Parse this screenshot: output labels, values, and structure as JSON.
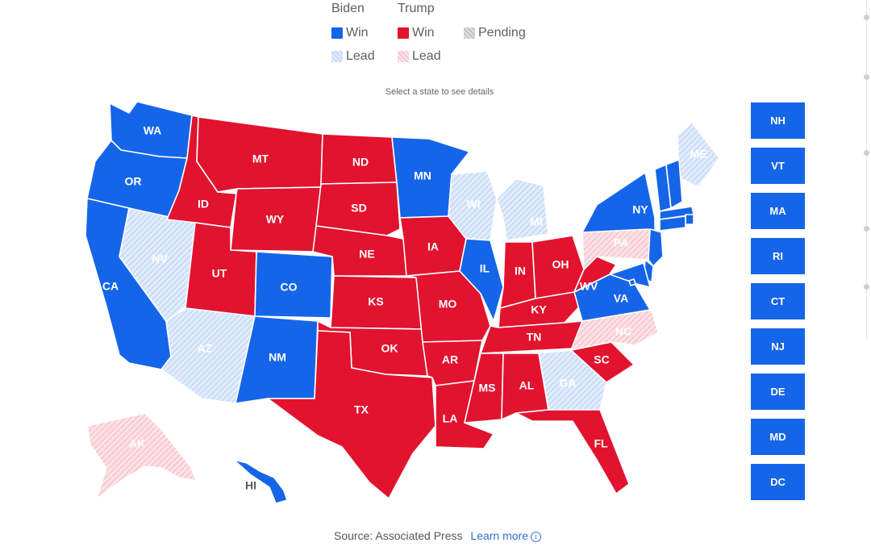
{
  "legend": {
    "biden_header": "Biden",
    "trump_header": "Trump",
    "win": "Win",
    "lead": "Lead",
    "pending": "Pending"
  },
  "hint": "Select a state to see details",
  "colors": {
    "biden_win": "#1565e8",
    "trump_win": "#e1132e",
    "biden_lead": "#d7e6fb",
    "trump_lead": "#fadadf",
    "pending": "#d3d5d8"
  },
  "states": [
    {
      "code": "WA",
      "status": "biden_win"
    },
    {
      "code": "OR",
      "status": "biden_win"
    },
    {
      "code": "CA",
      "status": "biden_win"
    },
    {
      "code": "NV",
      "status": "biden_lead"
    },
    {
      "code": "ID",
      "status": "trump_win"
    },
    {
      "code": "MT",
      "status": "trump_win"
    },
    {
      "code": "WY",
      "status": "trump_win"
    },
    {
      "code": "UT",
      "status": "trump_win"
    },
    {
      "code": "AZ",
      "status": "biden_lead"
    },
    {
      "code": "CO",
      "status": "biden_win"
    },
    {
      "code": "NM",
      "status": "biden_win"
    },
    {
      "code": "ND",
      "status": "trump_win"
    },
    {
      "code": "SD",
      "status": "trump_win"
    },
    {
      "code": "NE",
      "status": "trump_win"
    },
    {
      "code": "KS",
      "status": "trump_win"
    },
    {
      "code": "OK",
      "status": "trump_win"
    },
    {
      "code": "TX",
      "status": "trump_win"
    },
    {
      "code": "MN",
      "status": "biden_win"
    },
    {
      "code": "IA",
      "status": "trump_win"
    },
    {
      "code": "MO",
      "status": "trump_win"
    },
    {
      "code": "AR",
      "status": "trump_win"
    },
    {
      "code": "LA",
      "status": "trump_win"
    },
    {
      "code": "WI",
      "status": "biden_lead"
    },
    {
      "code": "IL",
      "status": "biden_win"
    },
    {
      "code": "MI",
      "status": "biden_lead"
    },
    {
      "code": "IN",
      "status": "trump_win"
    },
    {
      "code": "OH",
      "status": "trump_win"
    },
    {
      "code": "KY",
      "status": "trump_win"
    },
    {
      "code": "TN",
      "status": "trump_win"
    },
    {
      "code": "MS",
      "status": "trump_win"
    },
    {
      "code": "AL",
      "status": "trump_win"
    },
    {
      "code": "GA",
      "status": "biden_lead"
    },
    {
      "code": "FL",
      "status": "trump_win"
    },
    {
      "code": "SC",
      "status": "trump_win"
    },
    {
      "code": "NC",
      "status": "trump_lead"
    },
    {
      "code": "VA",
      "status": "biden_win"
    },
    {
      "code": "WV",
      "status": "trump_win"
    },
    {
      "code": "PA",
      "status": "trump_lead"
    },
    {
      "code": "NY",
      "status": "biden_win"
    },
    {
      "code": "ME",
      "status": "biden_lead"
    },
    {
      "code": "AK",
      "status": "trump_lead"
    },
    {
      "code": "HI",
      "status": "biden_win"
    }
  ],
  "small_states": [
    {
      "code": "NH",
      "status": "biden_win"
    },
    {
      "code": "VT",
      "status": "biden_win"
    },
    {
      "code": "MA",
      "status": "biden_win"
    },
    {
      "code": "RI",
      "status": "biden_win"
    },
    {
      "code": "CT",
      "status": "biden_win"
    },
    {
      "code": "NJ",
      "status": "biden_win"
    },
    {
      "code": "DE",
      "status": "biden_win"
    },
    {
      "code": "MD",
      "status": "biden_win"
    },
    {
      "code": "DC",
      "status": "biden_win"
    }
  ],
  "footer": {
    "source": "Source: Associated Press",
    "learn_more": "Learn more",
    "info_icon": "info-circle-icon"
  }
}
